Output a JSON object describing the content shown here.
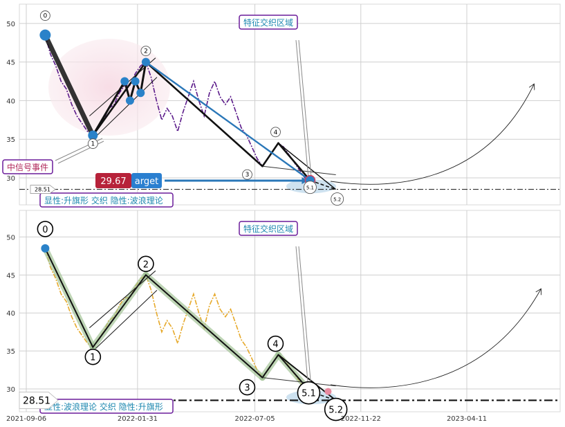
{
  "chart_data": [
    {
      "type": "line",
      "panel": "top",
      "ylim": [
        26.5,
        52.5
      ],
      "yticks": [
        30,
        35,
        40,
        45,
        50
      ],
      "xrange": [
        "2021-08-25",
        "2023-08-30"
      ],
      "grid": true,
      "series": [
        {
          "color": "#5b1a8a",
          "points": [
            [
              "2021-10-01",
              48.5
            ],
            [
              "2021-10-08",
              46.0
            ],
            [
              "2021-10-15",
              44.5
            ],
            [
              "2021-10-22",
              42.5
            ],
            [
              "2021-10-29",
              41.5
            ],
            [
              "2021-11-05",
              39.5
            ],
            [
              "2021-11-12",
              38.0
            ],
            [
              "2021-11-19",
              37.0
            ],
            [
              "2021-11-26",
              36.0
            ],
            [
              "2021-12-03",
              35.5
            ],
            [
              "2021-12-10",
              36.5
            ],
            [
              "2021-12-17",
              37.5
            ],
            [
              "2021-12-24",
              39.0
            ],
            [
              "2021-12-31",
              39.5
            ],
            [
              "2022-01-07",
              41.0
            ],
            [
              "2022-01-14",
              42.0
            ],
            [
              "2022-01-21",
              42.0
            ],
            [
              "2022-01-28",
              43.5
            ],
            [
              "2022-02-04",
              44.5
            ],
            [
              "2022-02-11",
              45.0
            ],
            [
              "2022-02-18",
              43.0
            ],
            [
              "2022-02-25",
              40.0
            ],
            [
              "2022-03-04",
              37.5
            ],
            [
              "2022-03-11",
              39.0
            ],
            [
              "2022-03-18",
              38.0
            ],
            [
              "2022-03-25",
              36.0
            ],
            [
              "2022-04-01",
              38.5
            ],
            [
              "2022-04-08",
              40.5
            ],
            [
              "2022-04-15",
              42.5
            ],
            [
              "2022-04-22",
              40.0
            ],
            [
              "2022-04-29",
              38.0
            ],
            [
              "2022-05-06",
              41.0
            ],
            [
              "2022-05-13",
              42.5
            ],
            [
              "2022-05-20",
              40.5
            ],
            [
              "2022-05-27",
              39.5
            ],
            [
              "2022-06-03",
              40.5
            ],
            [
              "2022-06-10",
              38.5
            ],
            [
              "2022-06-17",
              36.5
            ],
            [
              "2022-06-24",
              35.5
            ],
            [
              "2022-07-01",
              34.0
            ],
            [
              "2022-07-08",
              32.5
            ],
            [
              "2022-07-15",
              31.5
            ],
            [
              "2022-07-22",
              32.5
            ],
            [
              "2022-07-29",
              33.5
            ],
            [
              "2022-08-05",
              34.5
            ],
            [
              "2022-08-12",
              34.0
            ],
            [
              "2022-08-19",
              33.0
            ],
            [
              "2022-08-26",
              32.0
            ],
            [
              "2022-09-02",
              31.0
            ],
            [
              "2022-09-09",
              30.0
            ],
            [
              "2022-09-16",
              29.67
            ]
          ]
        }
      ],
      "pivots": [
        {
          "label": "0",
          "date": "2021-10-01",
          "value": 48.5
        },
        {
          "label": "1",
          "date": "2021-12-03",
          "value": 35.5
        },
        {
          "label": "2",
          "date": "2022-02-11",
          "value": 45.0
        },
        {
          "label": "3",
          "date": "2022-07-15",
          "value": 31.5
        },
        {
          "label": "4",
          "date": "2022-08-05",
          "value": 34.5
        },
        {
          "label": "5.1",
          "date": "2022-09-16",
          "value": 29.67
        },
        {
          "label": "5.2",
          "date": "2022-10-20",
          "value": 28.5
        }
      ],
      "level": 28.51,
      "annotations": {
        "zone": "特征交织区域",
        "event": "中信号事件",
        "pattern": "显性:升旗形 交织 隐性:波浪理论",
        "target_value": "29.67",
        "target_text": "arget",
        "level_label": "28.51"
      }
    },
    {
      "type": "line",
      "panel": "bottom",
      "ylim": [
        27.0,
        53.5
      ],
      "yticks": [
        30,
        35,
        40,
        45,
        50
      ],
      "xrange": [
        "2021-08-25",
        "2023-08-30"
      ],
      "xticks": [
        "2021-09-06",
        "2022-01-31",
        "2022-07-05",
        "2022-11-22",
        "2023-04-11"
      ],
      "grid": true,
      "series": [
        {
          "color": "#e6a92a",
          "points": [
            [
              "2021-10-01",
              48.5
            ],
            [
              "2021-10-08",
              46.0
            ],
            [
              "2021-10-15",
              44.5
            ],
            [
              "2021-10-22",
              42.5
            ],
            [
              "2021-10-29",
              41.5
            ],
            [
              "2021-11-05",
              39.5
            ],
            [
              "2021-11-12",
              38.0
            ],
            [
              "2021-11-19",
              37.0
            ],
            [
              "2021-11-26",
              36.0
            ],
            [
              "2021-12-03",
              35.5
            ],
            [
              "2021-12-10",
              36.5
            ],
            [
              "2021-12-17",
              37.5
            ],
            [
              "2021-12-24",
              39.0
            ],
            [
              "2021-12-31",
              39.5
            ],
            [
              "2022-01-07",
              41.0
            ],
            [
              "2022-01-14",
              42.0
            ],
            [
              "2022-01-21",
              42.0
            ],
            [
              "2022-01-28",
              43.5
            ],
            [
              "2022-02-04",
              44.5
            ],
            [
              "2022-02-11",
              45.0
            ],
            [
              "2022-02-18",
              43.0
            ],
            [
              "2022-02-25",
              40.0
            ],
            [
              "2022-03-04",
              37.5
            ],
            [
              "2022-03-11",
              39.0
            ],
            [
              "2022-03-18",
              38.0
            ],
            [
              "2022-03-25",
              36.0
            ],
            [
              "2022-04-01",
              38.5
            ],
            [
              "2022-04-08",
              40.5
            ],
            [
              "2022-04-15",
              42.5
            ],
            [
              "2022-04-22",
              40.0
            ],
            [
              "2022-04-29",
              38.0
            ],
            [
              "2022-05-06",
              41.0
            ],
            [
              "2022-05-13",
              42.5
            ],
            [
              "2022-05-20",
              40.5
            ],
            [
              "2022-05-27",
              39.5
            ],
            [
              "2022-06-03",
              40.5
            ],
            [
              "2022-06-10",
              38.5
            ],
            [
              "2022-06-17",
              36.5
            ],
            [
              "2022-06-24",
              35.5
            ],
            [
              "2022-07-01",
              34.0
            ],
            [
              "2022-07-08",
              32.5
            ],
            [
              "2022-07-15",
              31.5
            ],
            [
              "2022-07-22",
              32.5
            ],
            [
              "2022-07-29",
              33.5
            ],
            [
              "2022-08-05",
              34.5
            ],
            [
              "2022-08-12",
              34.0
            ],
            [
              "2022-08-19",
              33.0
            ],
            [
              "2022-08-26",
              32.0
            ],
            [
              "2022-09-02",
              31.0
            ],
            [
              "2022-09-09",
              30.0
            ],
            [
              "2022-09-16",
              29.67
            ]
          ]
        }
      ],
      "pivots": [
        {
          "label": "0",
          "date": "2021-10-01",
          "value": 48.5
        },
        {
          "label": "1",
          "date": "2021-12-03",
          "value": 35.5
        },
        {
          "label": "2",
          "date": "2022-02-11",
          "value": 45.0
        },
        {
          "label": "3",
          "date": "2022-07-15",
          "value": 31.5
        },
        {
          "label": "4",
          "date": "2022-08-05",
          "value": 34.5
        },
        {
          "label": "5.1",
          "date": "2022-09-16",
          "value": 29.67
        },
        {
          "label": "5.2",
          "date": "2022-10-20",
          "value": 28.5
        }
      ],
      "level": 28.51,
      "annotations": {
        "zone": "特征交织区域",
        "pattern": "显性:波浪理论 交织 隐性:升旗形",
        "level_label": "28.51"
      }
    }
  ]
}
